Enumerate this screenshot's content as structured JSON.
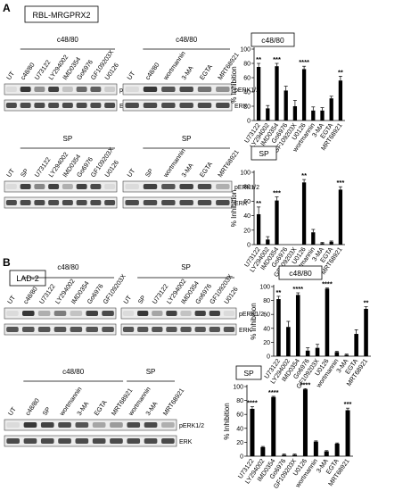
{
  "panels": {
    "A": {
      "letter": "A",
      "cell_line": "RBL-MRGPRX2",
      "blots": [
        {
          "group_label": "c48/80",
          "lanes": [
            "UT",
            "c48/80",
            "U73122",
            "LY294002",
            "IMD0354",
            "Go6976",
            "GF109203X",
            "U0126"
          ],
          "lane_first_group": 1,
          "bands": [
            "pERK1/2",
            "ERK"
          ],
          "pERK": [
            0.08,
            0.9,
            0.45,
            0.85,
            0.2,
            0.65,
            0.7,
            0.15
          ],
          "ERK": [
            0.8,
            0.8,
            0.8,
            0.8,
            0.8,
            0.8,
            0.8,
            0.8
          ]
        },
        {
          "group_label": "c48/80",
          "lanes": [
            "UT",
            "c48/80",
            "wortmannin",
            "3-MA",
            "EGTA",
            "MRT68921"
          ],
          "lane_first_group": 1,
          "bands": [
            "pERK1/2",
            "ERK"
          ],
          "pERK": [
            0.08,
            0.9,
            0.75,
            0.8,
            0.6,
            0.45
          ],
          "ERK": [
            0.8,
            0.8,
            0.8,
            0.8,
            0.8,
            0.8
          ]
        },
        {
          "group_label": "SP",
          "lanes": [
            "UT",
            "SP",
            "U73122",
            "LY294002",
            "IMD0354",
            "Go6976",
            "GF109203X",
            "U0126"
          ],
          "lane_first_group": 1,
          "bands": [
            "pERK1/2",
            "ERK"
          ],
          "pERK": [
            0.08,
            0.85,
            0.5,
            0.85,
            0.3,
            0.85,
            0.8,
            0.08
          ],
          "ERK": [
            0.8,
            0.8,
            0.8,
            0.8,
            0.8,
            0.8,
            0.8,
            0.8
          ]
        },
        {
          "group_label": "SP",
          "lanes": [
            "UT",
            "SP",
            "wortmannin",
            "3-MA",
            "EGTA",
            "MRT68921"
          ],
          "lane_first_group": 1,
          "bands": [
            "pERK1/2",
            "ERK"
          ],
          "pERK": [
            0.08,
            0.85,
            0.75,
            0.85,
            0.8,
            0.3
          ],
          "ERK": [
            0.8,
            0.8,
            0.8,
            0.8,
            0.8,
            0.8
          ]
        }
      ]
    },
    "B": {
      "letter": "B",
      "cell_line": "LAD-2",
      "blots": [
        {
          "group_label": "c48/80",
          "lanes": [
            "UT",
            "c48/80",
            "U73122",
            "LY294002",
            "IMD0354",
            "Go6976",
            "GF109203X"
          ],
          "lane_first_group": 1,
          "bands": [
            "pERK1/2",
            "ERK"
          ],
          "pERK": [
            0.08,
            0.9,
            0.3,
            0.55,
            0.2,
            0.85,
            0.8
          ],
          "ERK": [
            0.75,
            0.75,
            0.75,
            0.75,
            0.75,
            0.75,
            0.75
          ]
        },
        {
          "group_label": "SP",
          "lanes": [
            "UT",
            "SP",
            "U73122",
            "LY294002",
            "IMD0354",
            "Go6976",
            "GF109203X",
            "U0126"
          ],
          "lane_first_group": 1,
          "bands": [
            "pERK1/2",
            "ERK"
          ],
          "pERK": [
            0.08,
            0.9,
            0.35,
            0.85,
            0.2,
            0.85,
            0.85,
            0.08
          ],
          "ERK": [
            0.75,
            0.75,
            0.75,
            0.75,
            0.75,
            0.75,
            0.75,
            0.75
          ]
        },
        {
          "group_labels": [
            "c48/80",
            "SP"
          ],
          "lanes": [
            "UT",
            "c48/80",
            "SP",
            "wortmannin",
            "3-MA",
            "EGTA",
            "MRT68921",
            "wortmannin",
            "3-MA",
            "MRT68921"
          ],
          "bands": [
            "pERK1/2",
            "ERK"
          ],
          "pERK": [
            0.08,
            0.9,
            0.85,
            0.8,
            0.75,
            0.35,
            0.4,
            0.8,
            0.8,
            0.3
          ],
          "ERK": [
            0.8,
            0.8,
            0.8,
            0.8,
            0.8,
            0.8,
            0.8,
            0.8,
            0.8,
            0.8
          ]
        }
      ]
    }
  },
  "chart_data": [
    {
      "type": "bar",
      "title": "c48/80",
      "ylabel": "% Inhibition",
      "ylim": [
        0,
        100
      ],
      "yticks": [
        0,
        20,
        40,
        60,
        80,
        100
      ],
      "categories": [
        "U73122",
        "LY294002",
        "IMD0354",
        "Go6976",
        "GF109203X",
        "U0126",
        "wortmannin",
        "3-MA",
        "EGTA",
        "MRT68921"
      ],
      "values": [
        75,
        17,
        76,
        42,
        20,
        72,
        14,
        14,
        31,
        56
      ],
      "errors": [
        5,
        4,
        4,
        6,
        8,
        4,
        5,
        4,
        3,
        6
      ],
      "significance": [
        "**",
        "",
        "***",
        "",
        "",
        "****",
        "",
        "",
        "",
        "**"
      ]
    },
    {
      "type": "bar",
      "title": "SP",
      "ylabel": "% Inhibition",
      "ylim": [
        0,
        100
      ],
      "yticks": [
        0,
        20,
        40,
        60,
        80,
        100
      ],
      "categories": [
        "U73122",
        "LY294002",
        "IMD0354",
        "Go6976",
        "GF109203X",
        "U0126",
        "wortmannin",
        "3-MA",
        "EGTA",
        "MRT68921"
      ],
      "values": [
        42,
        7,
        61,
        0,
        0,
        86,
        17,
        2,
        4,
        76
      ],
      "errors": [
        10,
        4,
        5,
        0,
        0,
        4,
        4,
        1,
        1,
        4
      ],
      "significance": [
        "**",
        "",
        "***",
        "",
        "",
        "**",
        "",
        "",
        "",
        "***"
      ]
    },
    {
      "type": "bar",
      "title": "c48/80",
      "ylabel": "% Inhibition",
      "ylim": [
        0,
        100
      ],
      "yticks": [
        0,
        20,
        40,
        60,
        80,
        100
      ],
      "categories": [
        "U73122",
        "LY294002",
        "IMD0354",
        "Go6976",
        "GF109203X",
        "U0126",
        "wortmannin",
        "3-MA",
        "EGTA",
        "MRT68921"
      ],
      "values": [
        82,
        42,
        88,
        8,
        12,
        97,
        6,
        2,
        32,
        68
      ],
      "errors": [
        4,
        8,
        3,
        4,
        5,
        1,
        1,
        1,
        6,
        3
      ],
      "significance": [
        "**",
        "",
        "****",
        "",
        "",
        "****",
        "",
        "",
        "",
        "**"
      ]
    },
    {
      "type": "bar",
      "title": "SP",
      "ylabel": "% Inhibition",
      "ylim": [
        0,
        100
      ],
      "yticks": [
        0,
        20,
        40,
        60,
        80,
        100
      ],
      "categories": [
        "U73122",
        "LY294002",
        "IMD0354",
        "Go6976",
        "GF109203X",
        "U0126",
        "wortmannin",
        "3-MA",
        "EGTA",
        "MRT68921"
      ],
      "values": [
        68,
        13,
        85,
        2,
        2,
        96,
        21,
        7,
        18,
        66
      ],
      "errors": [
        3,
        1,
        1,
        1,
        1,
        1,
        1,
        1,
        1,
        3
      ],
      "significance": [
        "****",
        "",
        "****",
        "",
        "",
        "****",
        "",
        "",
        "",
        "***"
      ]
    }
  ]
}
